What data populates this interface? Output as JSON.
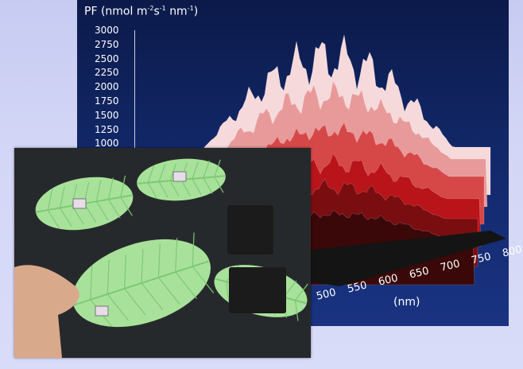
{
  "chart_panel": {
    "ylabel_main": "PF (nmol m",
    "ylabel_exp1": "-2",
    "ylabel_mid1": "s",
    "ylabel_exp2": "-1",
    "ylabel_mid2": "nm",
    "ylabel_exp3": "-1",
    "ylabel_close": ")",
    "xunit": "(nm)"
  },
  "chart_data": {
    "type": "area",
    "title": "",
    "ylabel": "PF (nmol m-2 s-1 nm-1)",
    "xlabel": "(nm)",
    "y_ticks": [
      "3000",
      "2750",
      "2500",
      "2250",
      "2000",
      "1750",
      "1500",
      "1250",
      "1000"
    ],
    "x_ticks": [
      "500",
      "550",
      "600",
      "650",
      "700",
      "750",
      "800"
    ],
    "ylim": [
      0,
      3000
    ],
    "xlim": [
      400,
      800
    ],
    "colors": [
      "#f6dadb",
      "#e89a9a",
      "#d64848",
      "#b8141a",
      "#7a0d10",
      "#3a0808"
    ]
  },
  "photo": {
    "background": "#26292c",
    "leaf_color": "#a8e29a",
    "leaf_vein_color": "#7ec876",
    "box_color": "#1b1b1b"
  }
}
